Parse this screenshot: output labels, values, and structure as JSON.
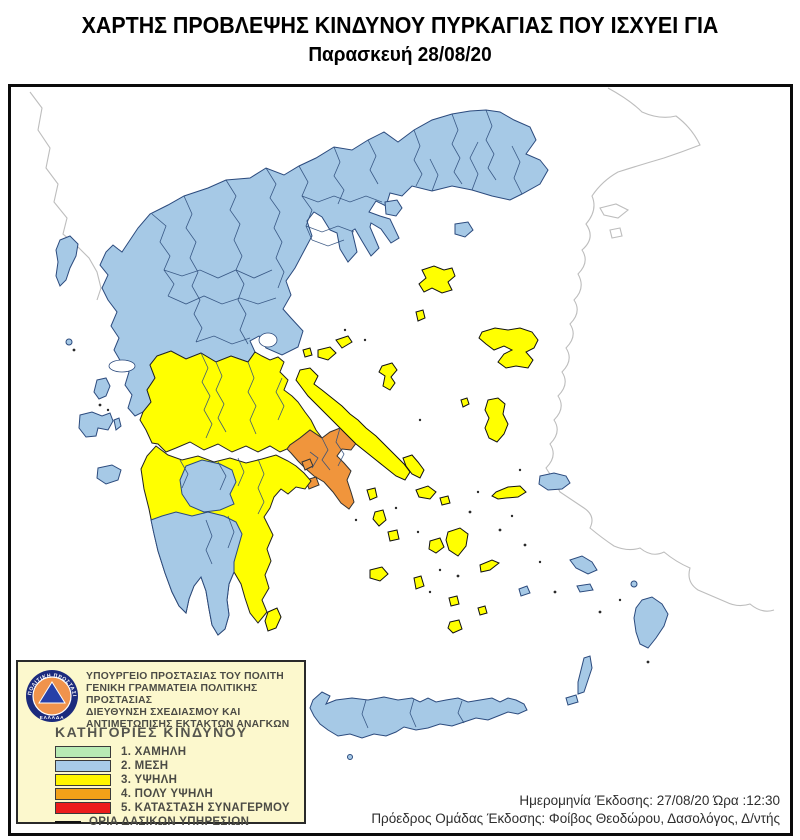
{
  "title": {
    "line1": "ΧΑΡΤΗΣ ΠΡΟΒΛΕΨΗΣ ΚΙΝΔΥΝΟΥ ΠΥΡΚΑΓΙΑΣ ΠΟΥ ΙΣΧΥΕΙ ΓΙΑ",
    "line2": "Παρασκευή 28/08/20"
  },
  "legend": {
    "agency_lines": [
      "ΥΠΟΥΡΓΕΙΟ ΠΡΟΣΤΑΣΙΑΣ ΤΟΥ ΠΟΛΙΤΗ",
      "ΓΕΝΙΚΗ ΓΡΑΜΜΑΤΕΙΑ ΠΟΛΙΤΙΚΗΣ ΠΡΟΣΤΑΣΙΑΣ",
      "ΔΙΕΥΘΥΝΣΗ ΣΧΕΔΙΑΣΜΟΥ ΚΑΙ",
      "ΑΝΤΙΜΕΤΩΠΙΣΗΣ ΕΚΤΑΚΤΩΝ ΑΝΑΓΚΩΝ"
    ],
    "logo": {
      "ring_text_top": "ΠΟΛΙΤΙΚΗ ΠΡΟΣΤΑΣΙΑ",
      "ring_text_bottom": "ΕΛΛΑΔΑ",
      "ring_color": "#1c2b7d",
      "disc_color": "#f0934c",
      "triangle_color": "#2740a8"
    },
    "categories_title": "ΚΑΤΗΓΟΡΙΕΣ ΚΙΝΔΥΝΟΥ",
    "categories": [
      {
        "label": "1. ΧΑΜΗΛΗ",
        "color": "#b7eab4"
      },
      {
        "label": "2. ΜΕΣΗ",
        "color": "#a8cbe8"
      },
      {
        "label": "3. ΥΨΗΛΗ",
        "color": "#fff500"
      },
      {
        "label": "4. ΠΟΛΥ ΥΨΗΛΗ",
        "color": "#f2a118"
      },
      {
        "label": "5. ΚΑΤΑΣΤΑΣΗ ΣΥΝΑΓΕΡΜΟΥ",
        "color": "#ec1c1c"
      }
    ],
    "boundary_label": "ΟΡΙΑ ΔΑΣΙΚΩΝ ΥΠΗΡΕΣΙΩΝ"
  },
  "issue": {
    "line1": "Ημερομηνία Έκδοσης: 27/08/20  Ώρα :12:30",
    "line2": "Πρόεδρος Ομάδας Έκδοσης: Φοίβος Θεοδώρου,  Δασολόγος, Δ/ντής"
  },
  "map": {
    "sea_color": "#ffffff",
    "map_yellow": "#ffff00",
    "map_blue": "#a6c9e6",
    "map_orange": "#f0953c",
    "areas": {
      "north-mainland": 2,
      "thasos": 2,
      "samothrace": 2,
      "corfu": 2,
      "paxi": 2,
      "lefkada": 2,
      "kefalonia": 2,
      "ithaki": 2,
      "zakynthos": 2,
      "arcadia": 2,
      "south-peloponnese": 2,
      "samos": 2,
      "astypalaia": 2,
      "kalymnos-leros": 2,
      "kos": 2,
      "nisyros": 2,
      "rhodes": 2,
      "karpathos": 2,
      "kasos": 2,
      "crete": 2,
      "gavdos": 2,
      "central-greece": 3,
      "peloponnese": 3,
      "evia": 3,
      "skyros": 3,
      "skiathos": 3,
      "skopelos": 3,
      "alonissos": 3,
      "limnos": 3,
      "agios-efstratios": 3,
      "lesvos": 3,
      "chios": 3,
      "psara": 3,
      "ikaria": 3,
      "andros": 3,
      "tinos": 3,
      "mykonos": 3,
      "kea": 3,
      "kythnos": 3,
      "serifos": 3,
      "sifnos": 3,
      "milos": 3,
      "paros": 3,
      "naxos": 3,
      "amorgos": 3,
      "ios": 3,
      "santorini": 3,
      "anafi": 3,
      "kythira": 3,
      "attica": 4,
      "salamina": 4,
      "aegina": 4
    }
  }
}
